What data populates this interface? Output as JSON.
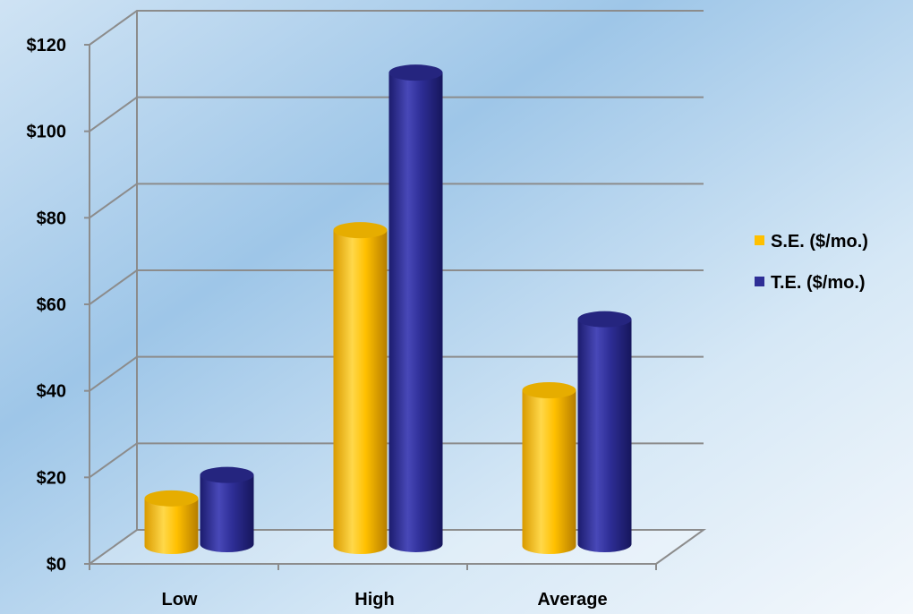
{
  "chart_data": {
    "type": "bar",
    "categories": [
      "Low",
      "High",
      "Average"
    ],
    "series": [
      {
        "name": "S.E. ($/mo.)",
        "values": [
          11,
          73,
          36
        ],
        "color": "#FFC000"
      },
      {
        "name": "T.E. ($/mo.)",
        "values": [
          16,
          109,
          52
        ],
        "color": "#2E2E96"
      }
    ],
    "y_ticks": [
      "$0",
      "$20",
      "$40",
      "$60",
      "$80",
      "$100",
      "$120"
    ],
    "ylim": [
      0,
      120
    ],
    "grid": true,
    "legend_position": "right",
    "style": "3d-cylinder"
  }
}
